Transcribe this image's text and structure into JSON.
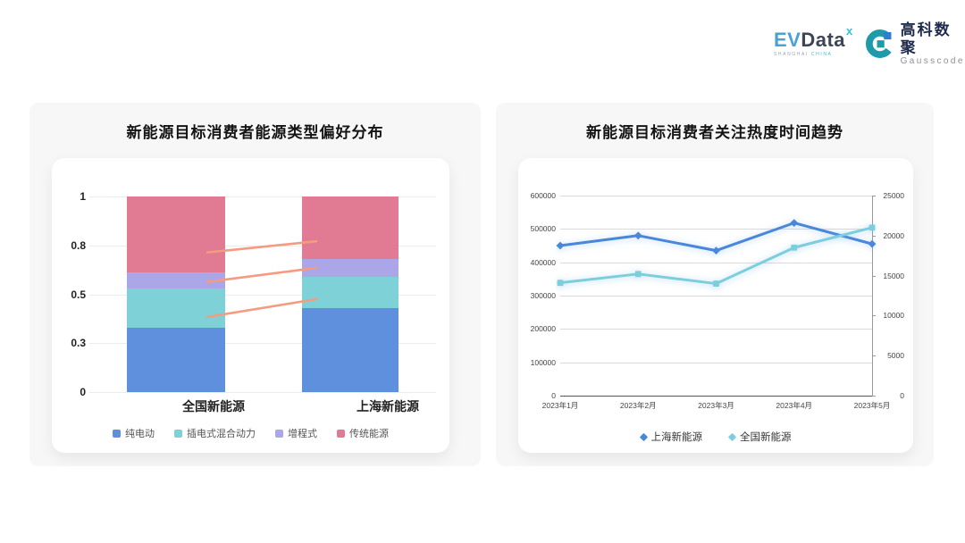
{
  "header": {
    "evdata": {
      "ev": "EV",
      "data": "Data",
      "sup": "x",
      "sub_left": "SHANGHAI",
      "sub_right": "CHINA"
    },
    "gausscode": {
      "cn": "高科数聚",
      "en": "Gausscode",
      "mark_teal": "#1E9BAB",
      "mark_blue": "#2B7FD0"
    }
  },
  "colors": {
    "page_bg": "#ffffff",
    "card_bg": "#f7f7f8",
    "panel_bg": "#ffffff",
    "connector": "#F49B80",
    "gridline_left": "#ececee",
    "gridline_right": "#dadada"
  },
  "chart_data": [
    {
      "type": "bar",
      "stacked": true,
      "title": "新能源目标消费者能源类型偏好分布",
      "categories": [
        "全国新能源",
        "上海新能源"
      ],
      "series": [
        {
          "name": "纯电动",
          "color": "#5F90DD",
          "values": [
            0.33,
            0.43
          ]
        },
        {
          "name": "插电式混合动力",
          "color": "#7FD1D8",
          "values": [
            0.2,
            0.16
          ]
        },
        {
          "name": "增程式",
          "color": "#ABA6E8",
          "values": [
            0.08,
            0.09
          ]
        },
        {
          "name": "传统能源",
          "color": "#E07B93",
          "values": [
            0.39,
            0.32
          ]
        }
      ],
      "ylim": [
        0,
        1
      ],
      "y_tick_labels": [
        "1",
        "0.8",
        "0.5",
        "0.3",
        "0"
      ],
      "grid": true,
      "legend_position": "bottom",
      "connector_lines": {
        "color": "#F49B80",
        "segments": [
          [
            0.714,
            0.771
          ],
          [
            0.563,
            0.635
          ],
          [
            0.384,
            0.475
          ]
        ]
      }
    },
    {
      "type": "line",
      "title": "新能源目标消费者关注热度时间趋势",
      "x": [
        "2023年1月",
        "2023年2月",
        "2023年3月",
        "2023年4月",
        "2023年5月"
      ],
      "series": [
        {
          "name": "上海新能源",
          "axis": "left",
          "color": "#4A86D9",
          "marker": "diamond",
          "values": [
            450000,
            480000,
            435000,
            518000,
            455000
          ]
        },
        {
          "name": "全国新能源",
          "axis": "right",
          "color": "#7CCEDC",
          "marker": "square",
          "values": [
            14100,
            15200,
            14000,
            18500,
            21000
          ]
        }
      ],
      "left_axis": {
        "min": 0,
        "max": 600000,
        "ticks": [
          600000,
          500000,
          400000,
          300000,
          200000,
          100000,
          0
        ]
      },
      "right_axis": {
        "min": 0,
        "max": 25000,
        "ticks": [
          25000,
          20000,
          15000,
          10000,
          5000,
          0
        ]
      },
      "grid": true,
      "legend_position": "bottom"
    }
  ]
}
